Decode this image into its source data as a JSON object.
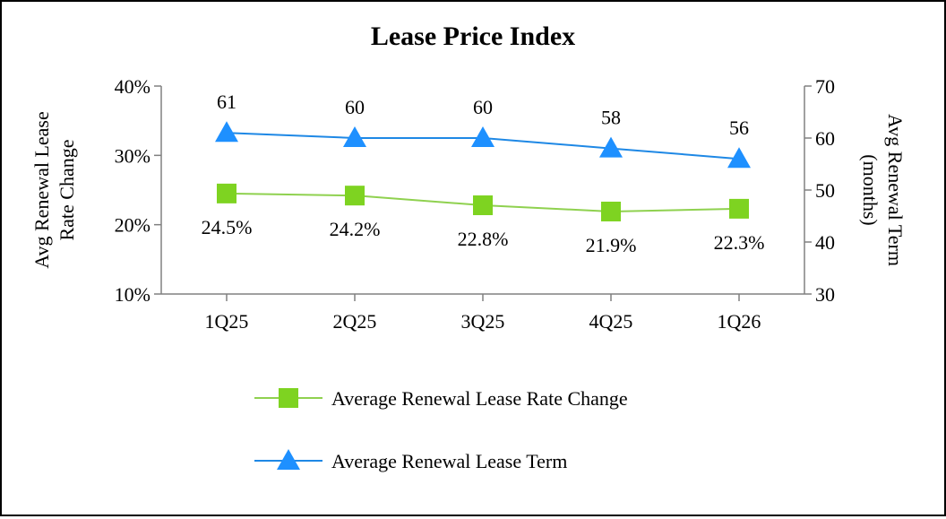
{
  "chart_data": {
    "type": "line",
    "title": "Lease Price Index",
    "categories": [
      "1Q25",
      "2Q25",
      "3Q25",
      "4Q25",
      "1Q26"
    ],
    "y_left": {
      "label_lines": [
        "Avg Renewal Lease",
        "Rate Change"
      ],
      "ylim": [
        10,
        40
      ],
      "ticks": [
        10,
        20,
        30,
        40
      ],
      "tick_labels": [
        "10%",
        "20%",
        "30%",
        "40%"
      ]
    },
    "y_right": {
      "label_lines": [
        "Avg Renewal Term",
        "(months)"
      ],
      "ylim": [
        30,
        70
      ],
      "ticks": [
        30,
        40,
        50,
        60,
        70
      ],
      "tick_labels": [
        "30",
        "40",
        "50",
        "60",
        "70"
      ]
    },
    "series": [
      {
        "name": "Average Renewal Lease Rate Change",
        "axis": "left",
        "marker": "square",
        "color": "#7ED321",
        "line_color": "#8FD14F",
        "values": [
          24.5,
          24.2,
          22.8,
          21.9,
          22.3
        ],
        "labels": [
          "24.5%",
          "24.2%",
          "22.8%",
          "21.9%",
          "22.3%"
        ],
        "label_position": "below"
      },
      {
        "name": "Average Renewal Lease Term",
        "axis": "right",
        "marker": "triangle",
        "color": "#1E90FF",
        "line_color": "#1E88E5",
        "values": [
          61,
          60,
          60,
          58,
          56
        ],
        "labels": [
          "61",
          "60",
          "60",
          "58",
          "56"
        ],
        "label_position": "above"
      }
    ],
    "legend_position": "bottom",
    "grid": false
  }
}
